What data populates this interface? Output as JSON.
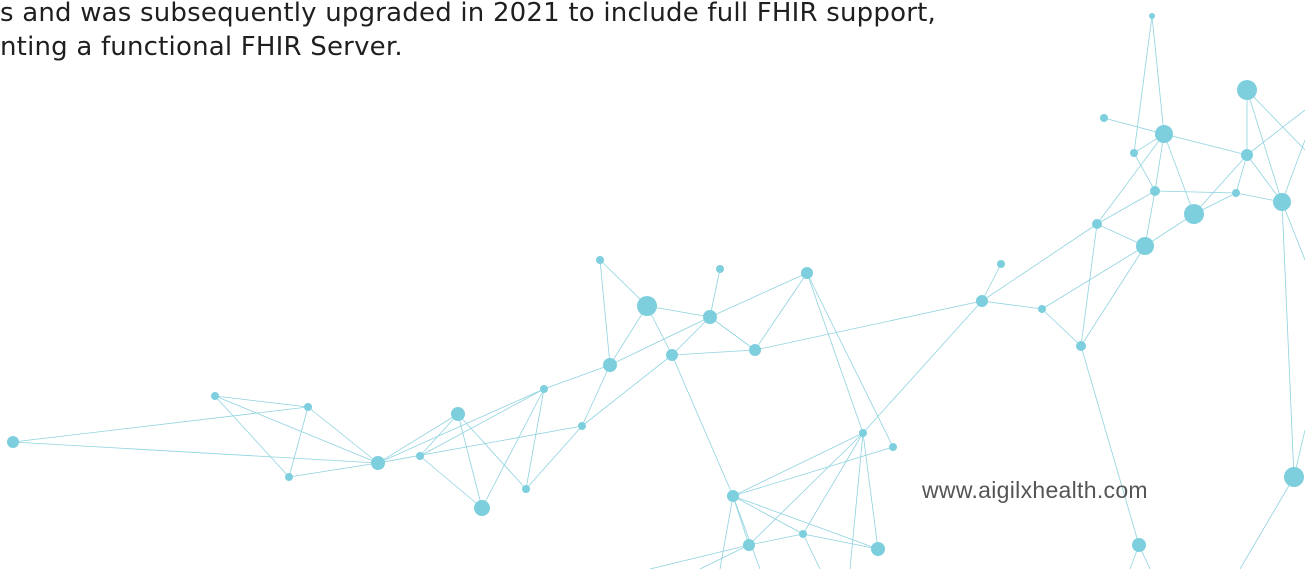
{
  "body_text": {
    "lines": [
      "s and was subsequently upgraded in 2021 to include full FHIR support,",
      "nting a functional FHIR Server."
    ]
  },
  "footer": {
    "url": "www.aigilxhealth.com"
  }
}
